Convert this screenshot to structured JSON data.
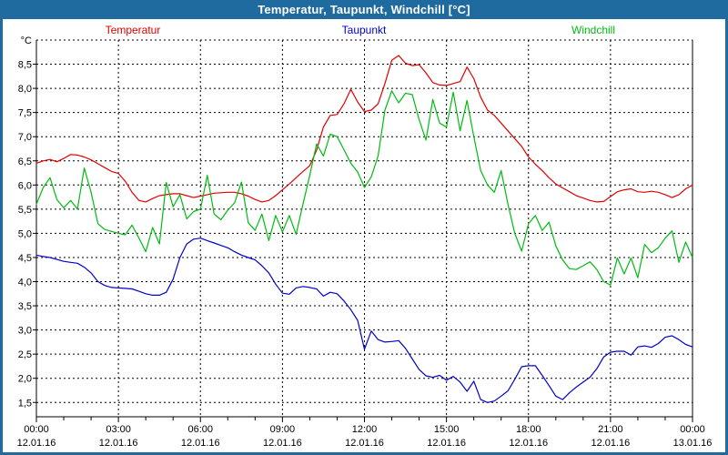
{
  "window": {
    "title": "Temperatur, Taupunkt, Windchill [°C]"
  },
  "colors": {
    "title_bar_bg": "#1f6a9e",
    "window_border": "#1f6a9e",
    "plot_background": "#ffffff",
    "grid": "#000000",
    "temperatur": "#e00000",
    "taupunkt": "#0000cc",
    "windchill": "#00bb11"
  },
  "legend": {
    "items": [
      {
        "label": "Temperatur",
        "color": "#e00000"
      },
      {
        "label": "Taupunkt",
        "color": "#0000cc"
      },
      {
        "label": "Windchill",
        "color": "#00bb11"
      }
    ]
  },
  "chart_data": {
    "type": "line",
    "title": "Temperatur, Taupunkt, Windchill [°C]",
    "grid": "dashed",
    "x_axis": {
      "range_hours": [
        0,
        24
      ],
      "major_tick_interval_hours": 3,
      "minor_tick_interval_hours": 1,
      "ticks": [
        {
          "hour": 0,
          "time": "00:00",
          "date": "12.01.16"
        },
        {
          "hour": 3,
          "time": "03:00",
          "date": "12.01.16"
        },
        {
          "hour": 6,
          "time": "06:00",
          "date": "12.01.16"
        },
        {
          "hour": 9,
          "time": "09:00",
          "date": "12.01.16"
        },
        {
          "hour": 12,
          "time": "12:00",
          "date": "12.01.16"
        },
        {
          "hour": 15,
          "time": "15:00",
          "date": "12.01.16"
        },
        {
          "hour": 18,
          "time": "18:00",
          "date": "12.01.16"
        },
        {
          "hour": 21,
          "time": "21:00",
          "date": "12.01.16"
        },
        {
          "hour": 24,
          "time": "00:00",
          "date": "13.01.16"
        }
      ]
    },
    "y_axis": {
      "unit_label": "°C",
      "top_value": 9.0,
      "bottom_value": 1.2,
      "tick_values": [
        8.5,
        8.0,
        7.5,
        7.0,
        6.5,
        6.0,
        5.5,
        5.0,
        4.5,
        4.0,
        3.5,
        3.0,
        2.5,
        2.0,
        1.5
      ],
      "tick_labels": [
        "8,5",
        "8,0",
        "7,5",
        "7,0",
        "6,5",
        "6,0",
        "5,5",
        "5,0",
        "4,5",
        "4,0",
        "3,5",
        "3,0",
        "2,5",
        "2,0",
        "1,5"
      ]
    },
    "x_step_hour": 0.25,
    "series": [
      {
        "name": "Temperatur",
        "color": "#e00000",
        "values": [
          6.45,
          6.5,
          6.53,
          6.48,
          6.55,
          6.63,
          6.62,
          6.58,
          6.52,
          6.44,
          6.36,
          6.28,
          6.24,
          6.08,
          5.85,
          5.68,
          5.65,
          5.72,
          5.78,
          5.8,
          5.82,
          5.82,
          5.78,
          5.74,
          5.77,
          5.8,
          5.83,
          5.84,
          5.85,
          5.85,
          5.82,
          5.77,
          5.7,
          5.65,
          5.68,
          5.78,
          5.9,
          6.02,
          6.15,
          6.28,
          6.4,
          6.72,
          7.2,
          7.44,
          7.46,
          7.68,
          7.98,
          7.72,
          7.52,
          7.55,
          7.68,
          8.1,
          8.58,
          8.68,
          8.52,
          8.47,
          8.49,
          8.32,
          8.12,
          8.07,
          8.06,
          8.1,
          8.14,
          8.44,
          8.2,
          7.82,
          7.55,
          7.44,
          7.28,
          7.12,
          6.96,
          6.8,
          6.58,
          6.43,
          6.3,
          6.15,
          6.02,
          5.94,
          5.86,
          5.78,
          5.73,
          5.68,
          5.65,
          5.66,
          5.76,
          5.86,
          5.9,
          5.92,
          5.86,
          5.85,
          5.87,
          5.85,
          5.8,
          5.74,
          5.8,
          5.92,
          6.0
        ]
      },
      {
        "name": "Taupunkt",
        "color": "#0000cc",
        "values": [
          4.55,
          4.52,
          4.5,
          4.46,
          4.42,
          4.4,
          4.38,
          4.3,
          4.18,
          4.0,
          3.92,
          3.88,
          3.87,
          3.86,
          3.85,
          3.8,
          3.75,
          3.72,
          3.72,
          3.78,
          4.05,
          4.5,
          4.78,
          4.88,
          4.9,
          4.85,
          4.8,
          4.75,
          4.7,
          4.62,
          4.55,
          4.5,
          4.45,
          4.33,
          4.18,
          3.95,
          3.76,
          3.74,
          3.87,
          3.9,
          3.88,
          3.85,
          3.7,
          3.78,
          3.75,
          3.6,
          3.42,
          3.2,
          2.6,
          2.98,
          2.8,
          2.75,
          2.76,
          2.78,
          2.62,
          2.4,
          2.18,
          2.05,
          2.02,
          2.06,
          1.96,
          2.04,
          1.92,
          1.73,
          1.94,
          1.56,
          1.5,
          1.53,
          1.63,
          1.74,
          1.98,
          2.24,
          2.26,
          2.26,
          2.06,
          1.85,
          1.63,
          1.56,
          1.7,
          1.82,
          1.92,
          2.02,
          2.2,
          2.44,
          2.54,
          2.56,
          2.56,
          2.48,
          2.65,
          2.67,
          2.64,
          2.72,
          2.85,
          2.88,
          2.8,
          2.7,
          2.65
        ]
      },
      {
        "name": "Windchill",
        "color": "#00bb11",
        "values": [
          5.6,
          5.95,
          6.15,
          5.7,
          5.53,
          5.68,
          5.5,
          6.35,
          5.85,
          5.2,
          5.08,
          5.04,
          5.0,
          4.97,
          5.17,
          4.9,
          4.62,
          5.12,
          4.78,
          6.05,
          5.55,
          5.8,
          5.3,
          5.45,
          5.5,
          6.2,
          5.4,
          5.28,
          5.48,
          5.63,
          6.06,
          5.22,
          5.06,
          5.4,
          4.85,
          5.37,
          5.03,
          5.37,
          4.98,
          5.6,
          6.2,
          6.85,
          6.6,
          7.05,
          7.0,
          6.73,
          6.45,
          6.27,
          5.95,
          6.17,
          6.6,
          7.55,
          7.95,
          7.7,
          7.9,
          7.87,
          7.35,
          6.93,
          7.77,
          7.28,
          7.2,
          7.92,
          7.12,
          7.75,
          7.0,
          6.3,
          6.0,
          5.85,
          6.3,
          5.6,
          5.0,
          4.63,
          5.2,
          5.37,
          5.06,
          5.23,
          4.74,
          4.45,
          4.27,
          4.25,
          4.33,
          4.41,
          4.25,
          4.0,
          3.93,
          4.49,
          4.16,
          4.49,
          4.08,
          4.77,
          4.6,
          4.7,
          4.9,
          5.05,
          4.4,
          4.82,
          4.5
        ]
      }
    ]
  }
}
